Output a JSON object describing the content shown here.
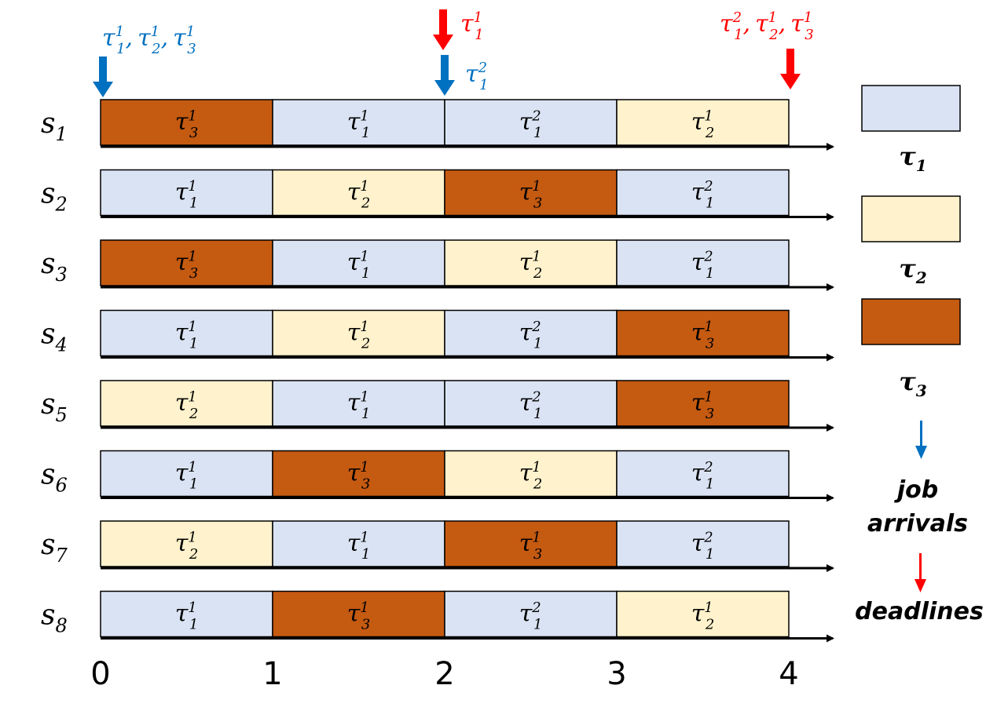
{
  "colors": {
    "tau1": "#dae3f3",
    "tau2": "#fff2cc",
    "tau3": "#c55a11",
    "arrival": "#0070c0",
    "deadline": "#ff0000",
    "axis": "#000000"
  },
  "servers": [
    {
      "base": "s",
      "sub": "1",
      "jobs": [
        [
          "3",
          "1"
        ],
        [
          "1",
          "1"
        ],
        [
          "1",
          "2"
        ],
        [
          "2",
          "1"
        ]
      ]
    },
    {
      "base": "s",
      "sub": "2",
      "jobs": [
        [
          "1",
          "1"
        ],
        [
          "2",
          "1"
        ],
        [
          "3",
          "1"
        ],
        [
          "1",
          "2"
        ]
      ]
    },
    {
      "base": "s",
      "sub": "3",
      "jobs": [
        [
          "3",
          "1"
        ],
        [
          "1",
          "1"
        ],
        [
          "2",
          "1"
        ],
        [
          "1",
          "2"
        ]
      ]
    },
    {
      "base": "s",
      "sub": "4",
      "jobs": [
        [
          "1",
          "1"
        ],
        [
          "2",
          "1"
        ],
        [
          "1",
          "2"
        ],
        [
          "3",
          "1"
        ]
      ]
    },
    {
      "base": "s",
      "sub": "5",
      "jobs": [
        [
          "2",
          "1"
        ],
        [
          "1",
          "1"
        ],
        [
          "1",
          "2"
        ],
        [
          "3",
          "1"
        ]
      ]
    },
    {
      "base": "s",
      "sub": "6",
      "jobs": [
        [
          "1",
          "1"
        ],
        [
          "3",
          "1"
        ],
        [
          "2",
          "1"
        ],
        [
          "1",
          "2"
        ]
      ]
    },
    {
      "base": "s",
      "sub": "7",
      "jobs": [
        [
          "2",
          "1"
        ],
        [
          "1",
          "1"
        ],
        [
          "3",
          "1"
        ],
        [
          "1",
          "2"
        ]
      ]
    },
    {
      "base": "s",
      "sub": "8",
      "jobs": [
        [
          "1",
          "1"
        ],
        [
          "3",
          "1"
        ],
        [
          "1",
          "2"
        ],
        [
          "2",
          "1"
        ]
      ]
    }
  ],
  "time_ticks": [
    "0",
    "1",
    "2",
    "3",
    "4"
  ],
  "markers": [
    {
      "kind": "arrival",
      "time": 0,
      "labels": [
        [
          "1",
          "1"
        ],
        [
          "2",
          "1"
        ],
        [
          "3",
          "1"
        ]
      ]
    },
    {
      "kind": "arrival",
      "time": 2,
      "labels": [
        [
          "1",
          "2"
        ]
      ]
    },
    {
      "kind": "deadline",
      "time": 2,
      "labels": [
        [
          "1",
          "1"
        ]
      ]
    },
    {
      "kind": "deadline",
      "time": 4,
      "labels": [
        [
          "1",
          "2"
        ],
        [
          "2",
          "1"
        ],
        [
          "3",
          "1"
        ]
      ]
    }
  ],
  "task_symbol": "τ",
  "legend": {
    "tasks": [
      {
        "task": "1",
        "label_base": "τ",
        "label_sub": "1"
      },
      {
        "task": "2",
        "label_base": "τ",
        "label_sub": "2"
      },
      {
        "task": "3",
        "label_base": "τ",
        "label_sub": "3"
      }
    ],
    "arrivals_lines": [
      "job",
      "arrivals"
    ],
    "deadlines_label": "deadlines"
  }
}
